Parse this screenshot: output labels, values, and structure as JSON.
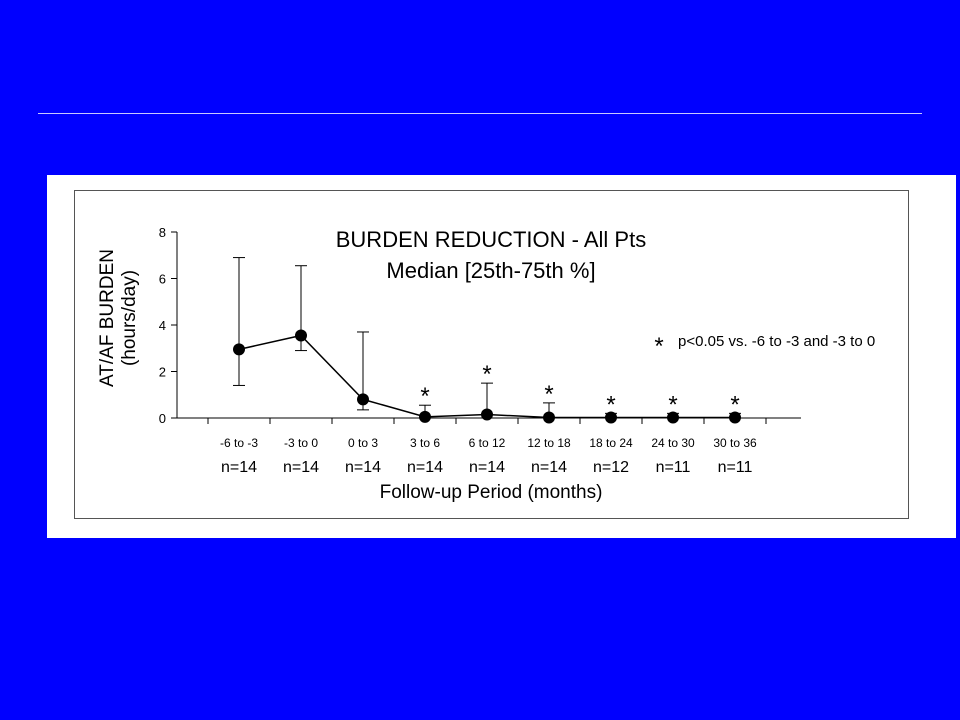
{
  "background_color": "#0000ff",
  "chart_data": {
    "type": "line",
    "title": "BURDEN REDUCTION - All Pts",
    "subtitle": "Median [25th-75th %]",
    "ylabel_line1": "AT/AF BURDEN",
    "ylabel_line2": "(hours/day)",
    "xlabel": "Follow-up Period (months)",
    "ylim": [
      0,
      8
    ],
    "yticks": [
      0,
      2,
      4,
      6,
      8
    ],
    "categories": [
      "-6 to -3",
      "-3 to 0",
      "0 to 3",
      "3 to 6",
      "6 to 12",
      "12 to 18",
      "18 to 24",
      "24 to 30",
      "30 to 36"
    ],
    "n_labels": [
      "n=14",
      "n=14",
      "n=14",
      "n=14",
      "n=14",
      "n=14",
      "n=12",
      "n=11",
      "n=11"
    ],
    "median": [
      2.95,
      3.55,
      0.8,
      0.05,
      0.15,
      0.02,
      0.02,
      0.02,
      0.02
    ],
    "p25": [
      1.4,
      2.9,
      0.35,
      0.0,
      0.0,
      0.0,
      0.0,
      0.0,
      0.0
    ],
    "p75": [
      6.9,
      6.55,
      3.7,
      0.55,
      1.5,
      0.65,
      0.2,
      0.2,
      0.2
    ],
    "significant": [
      false,
      false,
      false,
      true,
      true,
      true,
      true,
      true,
      true
    ],
    "significance_symbol": "*",
    "annotation": "p<0.05 vs. -6 to -3 and -3 to 0",
    "grid": false,
    "legend": "none"
  }
}
